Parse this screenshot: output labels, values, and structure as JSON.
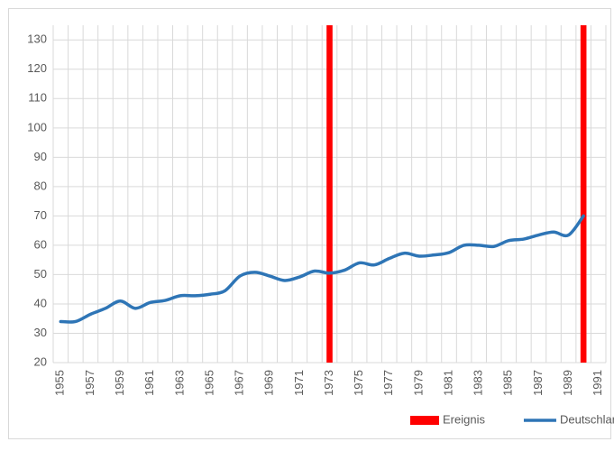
{
  "chart_data": {
    "type": "line",
    "categories": [
      "1955",
      null,
      "1957",
      null,
      "1959",
      null,
      "1961",
      null,
      "1963",
      null,
      "1965",
      null,
      "1967",
      null,
      "1969",
      null,
      "1971",
      null,
      "1973",
      null,
      "1975",
      null,
      "1977",
      null,
      "1979",
      null,
      "1981",
      null,
      "1983",
      null,
      "1985",
      null,
      "1987",
      null,
      "1989",
      null,
      "1991"
    ],
    "series": [
      {
        "name": "Ereignis",
        "type": "bar",
        "color": "#ff0000",
        "values": [
          null,
          null,
          null,
          null,
          null,
          null,
          null,
          null,
          null,
          null,
          null,
          null,
          null,
          null,
          null,
          null,
          null,
          null,
          135,
          null,
          null,
          null,
          null,
          null,
          null,
          null,
          null,
          null,
          null,
          null,
          null,
          null,
          null,
          null,
          null,
          135,
          null
        ]
      },
      {
        "name": "Deutschland",
        "type": "line",
        "color": "#2e75b6",
        "values": [
          34,
          34,
          36.5,
          38.5,
          41,
          38.5,
          40.5,
          41.2,
          42.8,
          42.8,
          43.3,
          44.5,
          49.5,
          50.8,
          49.5,
          48,
          49.2,
          51.2,
          50.5,
          51.5,
          54,
          53.3,
          55.5,
          57.3,
          56.3,
          56.7,
          57.5,
          60,
          60,
          59.6,
          61.6,
          62.1,
          63.5,
          64.5,
          63.5,
          70,
          null
        ]
      }
    ],
    "ylim": [
      20,
      135
    ],
    "yticks": [
      20,
      30,
      40,
      50,
      60,
      70,
      80,
      90,
      100,
      110,
      120,
      130
    ],
    "grid": true,
    "legend": "bottom-right"
  }
}
